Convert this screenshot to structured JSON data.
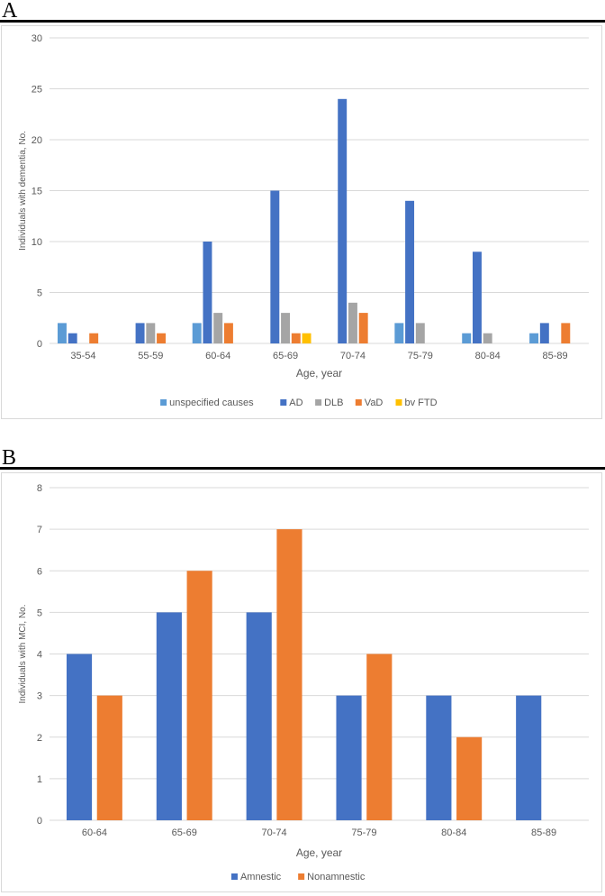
{
  "panels": [
    {
      "label": "A",
      "chart_data": {
        "type": "bar",
        "title": "",
        "xlabel": "Age, year",
        "ylabel": "Individuals with dementia, No.",
        "ylim": [
          0,
          30
        ],
        "yticks": [
          0,
          5,
          10,
          15,
          20,
          25,
          30
        ],
        "categories": [
          "35-54",
          "55-59",
          "60-64",
          "65-69",
          "70-74",
          "75-79",
          "80-84",
          "85-89"
        ],
        "series": [
          {
            "name": "unspecified causes",
            "color": "#5b9bd5",
            "values": [
              2,
              0,
              2,
              0,
              0,
              2,
              1,
              1
            ]
          },
          {
            "name": "AD",
            "color": "#4472c4",
            "values": [
              1,
              2,
              10,
              15,
              24,
              14,
              9,
              2
            ]
          },
          {
            "name": "DLB",
            "color": "#a5a5a5",
            "values": [
              0,
              2,
              3,
              3,
              4,
              2,
              1,
              0
            ]
          },
          {
            "name": "VaD",
            "color": "#ed7d31",
            "values": [
              1,
              1,
              2,
              1,
              3,
              0,
              0,
              2
            ]
          },
          {
            "name": "bv FTD",
            "color": "#ffc000",
            "values": [
              0,
              0,
              0,
              1,
              0,
              0,
              0,
              0
            ]
          }
        ],
        "grid": true,
        "legend": "bottom"
      }
    },
    {
      "label": "B",
      "chart_data": {
        "type": "bar",
        "title": "",
        "xlabel": "Age, year",
        "ylabel": "Individuals with MCI, No.",
        "ylim": [
          0,
          8
        ],
        "yticks": [
          0,
          1,
          2,
          3,
          4,
          5,
          6,
          7,
          8
        ],
        "categories": [
          "60-64",
          "65-69",
          "70-74",
          "75-79",
          "80-84",
          "85-89"
        ],
        "series": [
          {
            "name": "Amnestic",
            "color": "#4472c4",
            "values": [
              4,
              5,
              5,
              3,
              3,
              3
            ]
          },
          {
            "name": "Nonamnestic",
            "color": "#ed7d31",
            "values": [
              3,
              6,
              7,
              4,
              2,
              0
            ]
          }
        ],
        "grid": true,
        "legend": "bottom"
      }
    }
  ]
}
